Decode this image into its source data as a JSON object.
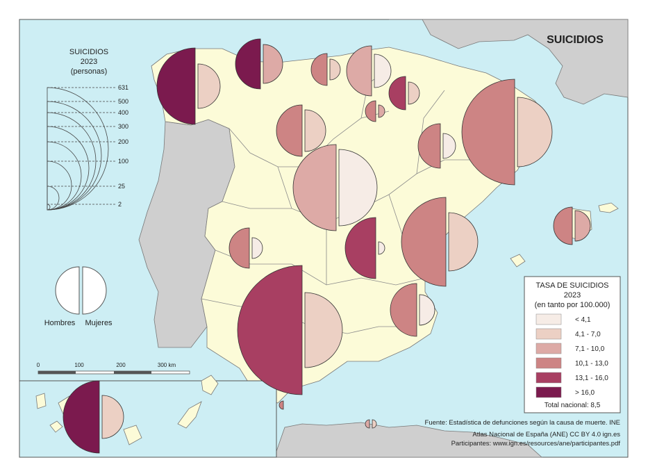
{
  "map": {
    "title": "SUICIDIOS",
    "colors": {
      "sea": "#cdeef4",
      "land": "#fcfbd8",
      "neighbor": "#cfcfcf",
      "border": "#777777",
      "class1": "#f6ece6",
      "class2": "#ecd0c4",
      "class3": "#ddaaa6",
      "class4": "#cd8484",
      "class5": "#a83f62",
      "class6": "#7b1a4e"
    }
  },
  "size_legend": {
    "title": "SUICIDIOS",
    "year": "2023",
    "unit": "(personas)",
    "values": [
      "631",
      "500",
      "400",
      "300",
      "200",
      "100",
      "25",
      "2"
    ]
  },
  "gender_legend": {
    "men": "Hombres",
    "women": "Mujeres"
  },
  "scale_bar": {
    "labels": [
      "0",
      "100",
      "200",
      "300 km"
    ]
  },
  "rate_legend": {
    "title": "TASA DE SUICIDIOS",
    "year": "2023",
    "unit": "(en tanto por 100.000)",
    "classes": [
      "< 4,1",
      "4,1 - 7,0",
      "7,1 - 10,0",
      "10,1 - 13,0",
      "13,1 - 16,0",
      "> 16,0"
    ],
    "national": "Total nacional: 8,5"
  },
  "credits": {
    "source": "Fuente: Estadística de defunciones según la causa de muerte. INE",
    "atlas": "Atlas Nacional de España (ANE) CC BY 4.0 ign.es",
    "participants": "Participantes: www.ign.es/resources/ane/participantes.pdf"
  }
}
